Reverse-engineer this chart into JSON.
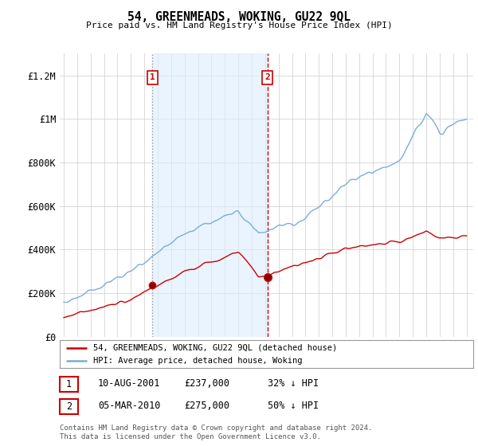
{
  "title": "54, GREENMEADS, WOKING, GU22 9QL",
  "subtitle": "Price paid vs. HM Land Registry's House Price Index (HPI)",
  "ylabel_ticks": [
    "£0",
    "£200K",
    "£400K",
    "£600K",
    "£800K",
    "£1M",
    "£1.2M"
  ],
  "ytick_values": [
    0,
    200000,
    400000,
    600000,
    800000,
    1000000,
    1200000
  ],
  "ylim": [
    0,
    1300000
  ],
  "xlim_start": 1994.7,
  "xlim_end": 2025.5,
  "hpi_color": "#7aaddb",
  "price_color": "#cc0000",
  "sale1_date": 2001.61,
  "sale1_price": 237000,
  "sale1_label": "1",
  "sale2_date": 2010.17,
  "sale2_price": 275000,
  "sale2_label": "2",
  "vline1_color": "#999999",
  "vline2_color": "#cc0000",
  "shade_color": "#ddeeff",
  "legend_line1": "54, GREENMEADS, WOKING, GU22 9QL (detached house)",
  "legend_line2": "HPI: Average price, detached house, Woking",
  "table_row1": [
    "1",
    "10-AUG-2001",
    "£237,000",
    "32% ↓ HPI"
  ],
  "table_row2": [
    "2",
    "05-MAR-2010",
    "£275,000",
    "50% ↓ HPI"
  ],
  "footnote1": "Contains HM Land Registry data © Crown copyright and database right 2024.",
  "footnote2": "This data is licensed under the Open Government Licence v3.0.",
  "background_color": "#ffffff"
}
